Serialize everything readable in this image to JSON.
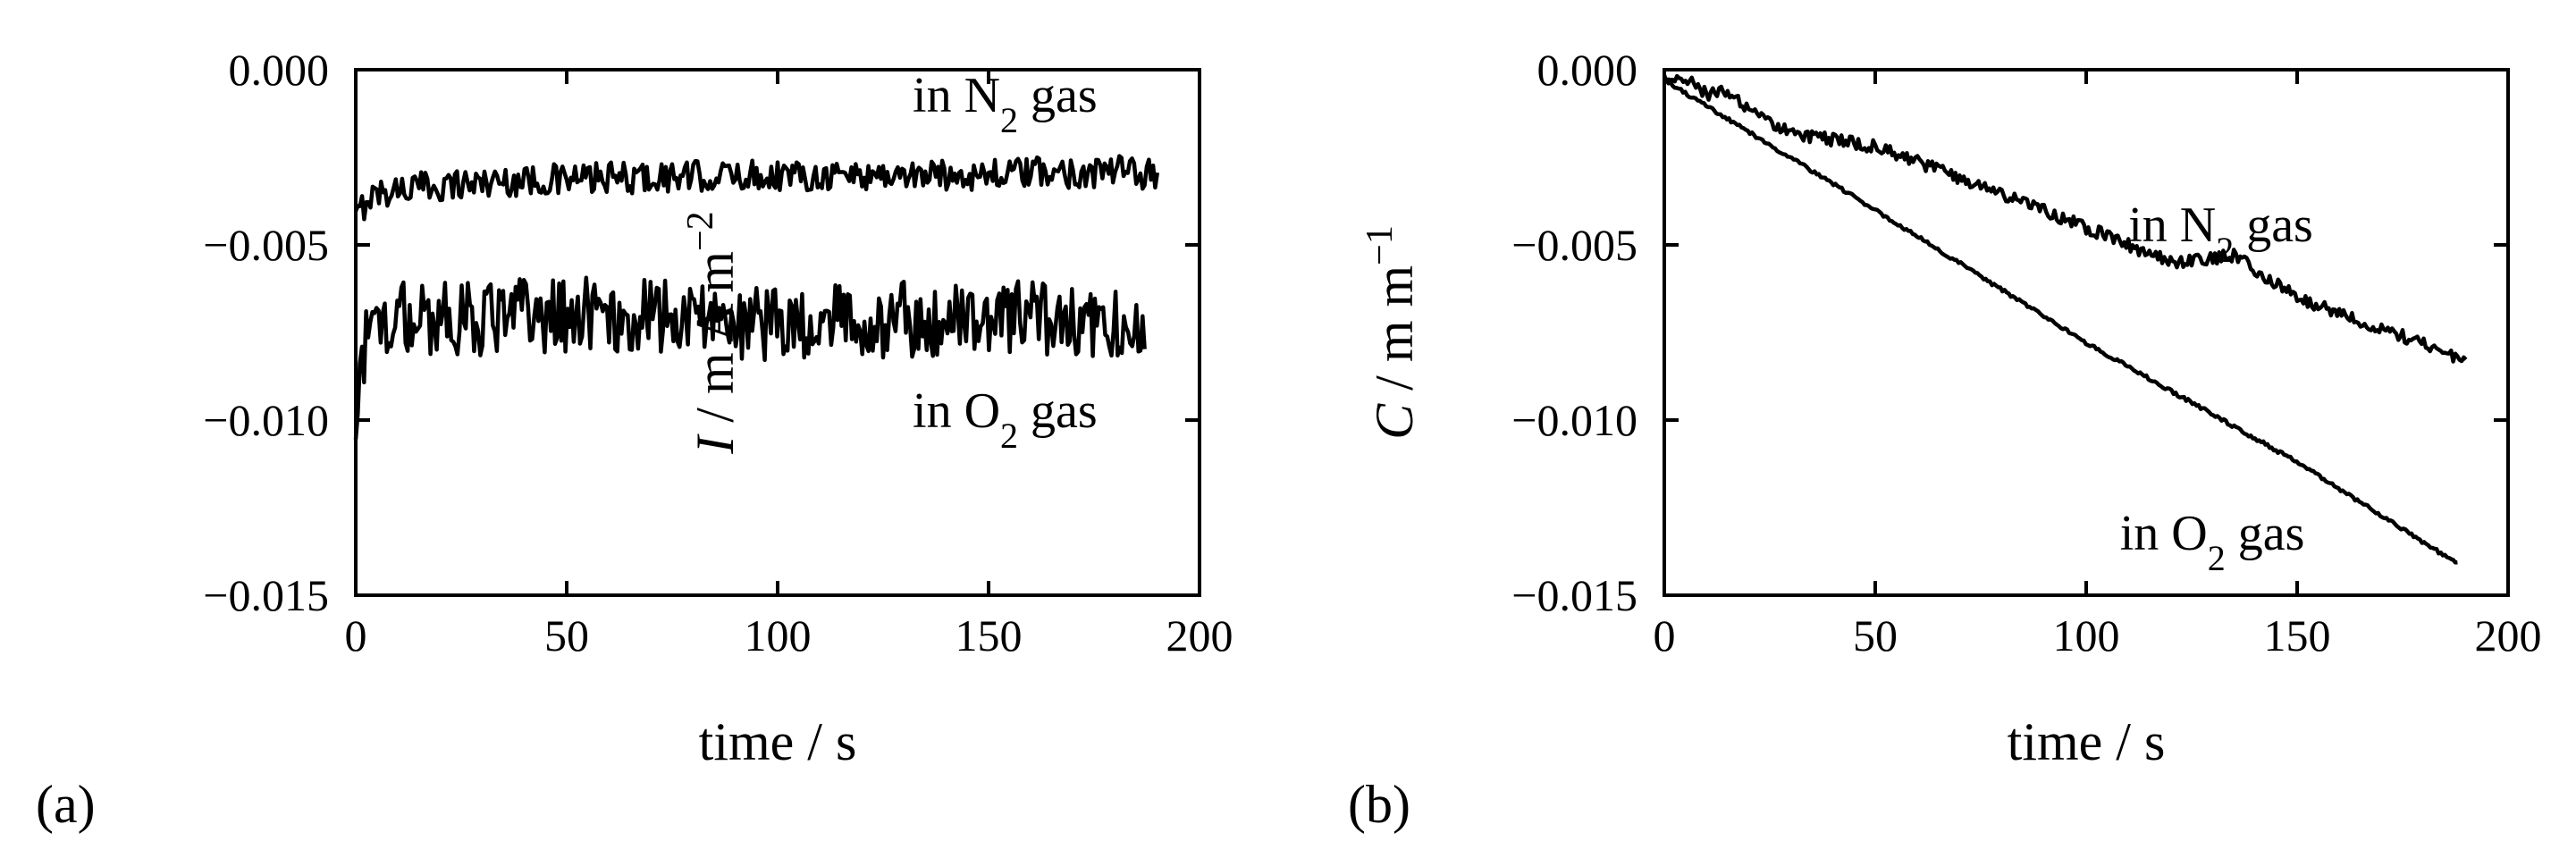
{
  "chart_data": [
    {
      "type": "line",
      "panel_label": "(a)",
      "xlabel": "time / s",
      "ylabel": {
        "symbol": "I",
        "rest": " / m A m",
        "sup": "−2"
      },
      "xlim": [
        0,
        200
      ],
      "ylim": [
        -0.015,
        0.0
      ],
      "xticks": [
        0,
        50,
        100,
        150,
        200
      ],
      "xtick_labels": [
        "0",
        "50",
        "100",
        "150",
        "200"
      ],
      "yticks": [
        0.0,
        -0.005,
        -0.01,
        -0.015
      ],
      "ytick_labels": [
        "0.000",
        "−0.005",
        "−0.010",
        "−0.015"
      ],
      "series": [
        {
          "label": {
            "pre": "in N",
            "sub": "2",
            "post": " gas"
          },
          "label_anchor": [
            132,
            -0.0012
          ],
          "x_start": 0,
          "x_end": 190,
          "x": [
            0,
            3,
            10,
            30,
            60,
            100,
            140,
            180,
            190
          ],
          "y": [
            -0.0043,
            -0.0036,
            -0.0034,
            -0.0032,
            -0.0031,
            -0.003,
            -0.003,
            -0.0029,
            -0.003
          ],
          "noise": 0.00045
        },
        {
          "label": {
            "pre": "in O",
            "sub": "2",
            "post": " gas"
          },
          "label_anchor": [
            132,
            -0.0102
          ],
          "x_start": 0,
          "x_end": 187,
          "x": [
            0,
            3,
            10,
            50,
            100,
            150,
            187
          ],
          "y": [
            -0.0095,
            -0.0074,
            -0.0071,
            -0.007,
            -0.0072,
            -0.0071,
            -0.0072
          ],
          "noise": 0.0011
        }
      ]
    },
    {
      "type": "line",
      "panel_label": "(b)",
      "xlabel": "time / s",
      "ylabel": {
        "symbol": "C",
        "rest": " / m m",
        "sup": "−1"
      },
      "xlim": [
        0,
        200
      ],
      "ylim": [
        -0.015,
        0.0
      ],
      "xticks": [
        0,
        50,
        100,
        150,
        200
      ],
      "xtick_labels": [
        "0",
        "50",
        "100",
        "150",
        "200"
      ],
      "yticks": [
        0.0,
        -0.005,
        -0.01,
        -0.015
      ],
      "ytick_labels": [
        "0.000",
        "−0.005",
        "−0.010",
        "−0.015"
      ],
      "series": [
        {
          "label": {
            "pre": "in N",
            "sub": "2",
            "post": " gas"
          },
          "label_anchor": [
            110,
            -0.0049
          ],
          "x_start": 0,
          "x_end": 190,
          "x": [
            0,
            5,
            10,
            15,
            20,
            30,
            50,
            75,
            100,
            120,
            135,
            150,
            170,
            180,
            190
          ],
          "y": [
            -0.0003,
            -0.0002,
            -0.0007,
            -0.0006,
            -0.0012,
            -0.0018,
            -0.0022,
            -0.0033,
            -0.0045,
            -0.0055,
            -0.0053,
            -0.0065,
            -0.0074,
            -0.0078,
            -0.0084
          ],
          "noise": 0.00018
        },
        {
          "label": {
            "pre": "in O",
            "sub": "2",
            "post": " gas"
          },
          "label_anchor": [
            108,
            -0.0137
          ],
          "x_start": 0,
          "x_end": 188,
          "x": [
            0,
            50,
            100,
            150,
            188
          ],
          "y": [
            -0.0003,
            -0.004,
            -0.0078,
            -0.0112,
            -0.0141
          ],
          "noise": 5e-05
        }
      ]
    }
  ]
}
